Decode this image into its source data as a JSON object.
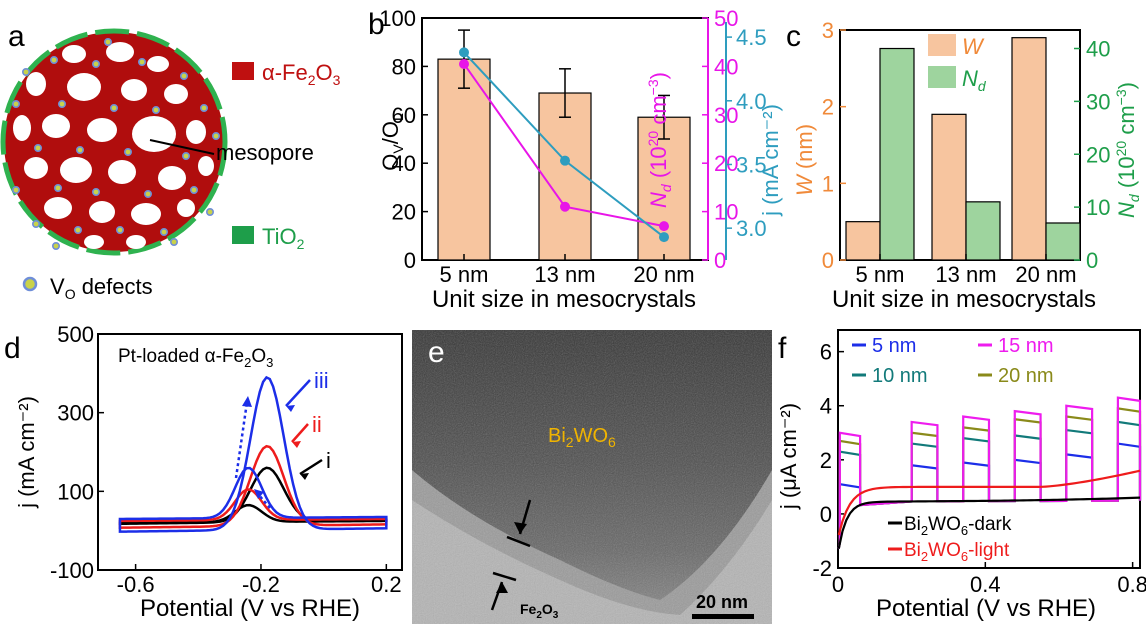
{
  "panels": {
    "a": {
      "letter": "a",
      "legend": [
        {
          "label": "α-Fe",
          "sub": "2",
          "label2": "O",
          "sub2": "3",
          "color": "#bf1010"
        },
        {
          "label": "mesopore",
          "color": "#000000"
        },
        {
          "label": "TiO",
          "sub": "2",
          "color": "#1e9e4a"
        },
        {
          "label": "V",
          "sub": "O",
          "label2": " defects",
          "color": "#000000"
        }
      ]
    },
    "b": {
      "letter": "b"
    },
    "c": {
      "letter": "c"
    },
    "d": {
      "letter": "d",
      "title": "Pt-loaded α-Fe",
      "title_sub": "2",
      "title2": "O",
      "title_sub2": "3"
    },
    "e": {
      "letter": "e",
      "label_main": "Bi",
      "label_sub1": "2",
      "label_mid": "WO",
      "label_sub2": "6",
      "label_bottom": "Fe",
      "label_bottom_sub1": "2",
      "label_bottom_mid": "O",
      "label_bottom_sub2": "3",
      "scale_bar": "20 nm"
    },
    "f": {
      "letter": "f"
    }
  },
  "chart_data": [
    {
      "id": "b",
      "type": "bar",
      "categories": [
        "5 nm",
        "13 nm",
        "20 nm"
      ],
      "xlabel": "Unit size in mesocrystals",
      "ylabel_left": {
        "main": "O",
        "sub": "V",
        "mid": "/O",
        "sub2": "L"
      },
      "ylabel_mid": {
        "main": "N",
        "sub": "d",
        "rest": " (10",
        "sup": "20",
        "rest2": " cm",
        "sup2": "−3",
        "rest3": ")"
      },
      "ylabel_right": "j (mA cm⁻²)",
      "ylim_left": [
        0,
        100
      ],
      "ylim_mid": [
        0,
        50
      ],
      "ylim_right": [
        2.75,
        4.65
      ],
      "yticks_left": [
        "0",
        "20",
        "40",
        "60",
        "80",
        "100"
      ],
      "yticks_mid": [
        "0",
        "10",
        "20",
        "30",
        "40",
        "50"
      ],
      "yticks_right": [
        "3.0",
        "3.5",
        "4.0",
        "4.5"
      ],
      "series": [
        {
          "name": "Ov/OL",
          "axis": "left",
          "kind": "bar",
          "values": [
            83,
            69,
            59
          ],
          "errors": [
            12,
            10,
            9
          ],
          "color": "#f7c59f"
        },
        {
          "name": "Nd",
          "axis": "mid",
          "kind": "line",
          "values": [
            40.5,
            11,
            7
          ],
          "color": "#e815e8"
        },
        {
          "name": "j",
          "axis": "right",
          "kind": "line",
          "values": [
            4.38,
            3.53,
            2.93
          ],
          "color": "#2e9dbf"
        }
      ]
    },
    {
      "id": "c",
      "type": "bar",
      "categories": [
        "5 nm",
        "13 nm",
        "20 nm"
      ],
      "xlabel": "Unit size in mesocrystals",
      "ylabel_left": {
        "main": "W",
        "rest": " (nm)"
      },
      "ylabel_right": {
        "main": "N",
        "sub": "d",
        "rest": " (10",
        "sup": "20",
        "rest2": " cm",
        "sup2": "−3",
        "rest3": ")"
      },
      "ylim_left": [
        0,
        3
      ],
      "ylim_right": [
        0,
        43.5
      ],
      "yticks_left": [
        "0",
        "1",
        "2",
        "3"
      ],
      "yticks_right": [
        "0",
        "10",
        "20",
        "30",
        "40"
      ],
      "legend": [
        {
          "label": "W",
          "italic": true,
          "color": "#f7c59f",
          "text_color": "#f08a3a"
        },
        {
          "label": "N",
          "sub": "d",
          "italic": true,
          "color": "#9ed49e",
          "text_color": "#1e9e4a"
        }
      ],
      "series": [
        {
          "name": "W",
          "axis": "left",
          "values": [
            0.5,
            1.9,
            2.9
          ],
          "color": "#f7c59f"
        },
        {
          "name": "Nd",
          "axis": "right",
          "values": [
            40,
            11,
            7
          ],
          "color": "#9ed49e"
        }
      ]
    },
    {
      "id": "d",
      "type": "line",
      "xlabel": "Potential (V vs RHE)",
      "ylabel": "j (mA cm⁻²)",
      "xlim": [
        -0.72,
        0.25
      ],
      "ylim": [
        -100,
        500
      ],
      "xticks": [
        "-0.6",
        "-0.2",
        "0.2"
      ],
      "yticks": [
        "-100",
        "100",
        "300",
        "500"
      ],
      "annotations": [
        "i",
        "ii",
        "iii"
      ],
      "series": [
        {
          "name": "i",
          "color": "#000000",
          "peak_x": -0.18,
          "peak_y": 160,
          "rev_peak_y": 55
        },
        {
          "name": "ii",
          "color": "#ee1c1c",
          "peak_x": -0.18,
          "peak_y": 215,
          "rev_peak_y": 95
        },
        {
          "name": "iii",
          "color": "#1c2ee8",
          "peak_x": -0.18,
          "peak_y": 390,
          "rev_peak_y": 150
        }
      ]
    },
    {
      "id": "f",
      "type": "line",
      "xlabel": "Potential (V vs RHE)",
      "ylabel": "j (μA cm⁻²)",
      "xlim": [
        0,
        0.82
      ],
      "ylim": [
        -2,
        6.8
      ],
      "xticks": [
        "0",
        "0.4",
        "0.8"
      ],
      "yticks": [
        "-2",
        "0",
        "2",
        "4",
        "6"
      ],
      "legend": [
        {
          "label": "5 nm",
          "color": "#1c2ee8"
        },
        {
          "label": "15 nm",
          "color": "#ee1cee"
        },
        {
          "label": "10 nm",
          "color": "#127a7a"
        },
        {
          "label": "20 nm",
          "color": "#8a8a1a"
        }
      ],
      "legend2": [
        {
          "label": "Bi",
          "sub": "2",
          "label2": "WO",
          "sub2": "6",
          "label3": "-dark",
          "color": "#000000"
        },
        {
          "label": "Bi",
          "sub": "2",
          "label2": "WO",
          "sub2": "6",
          "label3": "-light",
          "color": "#ee1c1c"
        }
      ],
      "on_windows": [
        [
          0.005,
          0.06
        ],
        [
          0.2,
          0.27
        ],
        [
          0.34,
          0.41
        ],
        [
          0.48,
          0.55
        ],
        [
          0.62,
          0.69
        ],
        [
          0.76,
          0.82
        ]
      ],
      "series": [
        {
          "name": "5 nm",
          "color": "#1c2ee8",
          "on_values": [
            1.1,
            1.8,
            1.9,
            2.0,
            2.2,
            2.6
          ]
        },
        {
          "name": "10 nm",
          "color": "#127a7a",
          "on_values": [
            2.3,
            2.6,
            2.8,
            2.9,
            3.1,
            3.4
          ]
        },
        {
          "name": "20 nm",
          "color": "#8a8a1a",
          "on_values": [
            2.7,
            3.0,
            3.2,
            3.5,
            3.6,
            3.9
          ]
        },
        {
          "name": "15 nm",
          "color": "#ee1cee",
          "on_values": [
            3.0,
            3.4,
            3.6,
            3.8,
            4.0,
            4.3
          ]
        },
        {
          "name": "Bi2WO6-dark",
          "color": "#000000"
        },
        {
          "name": "Bi2WO6-light",
          "color": "#ee1c1c"
        }
      ]
    }
  ]
}
